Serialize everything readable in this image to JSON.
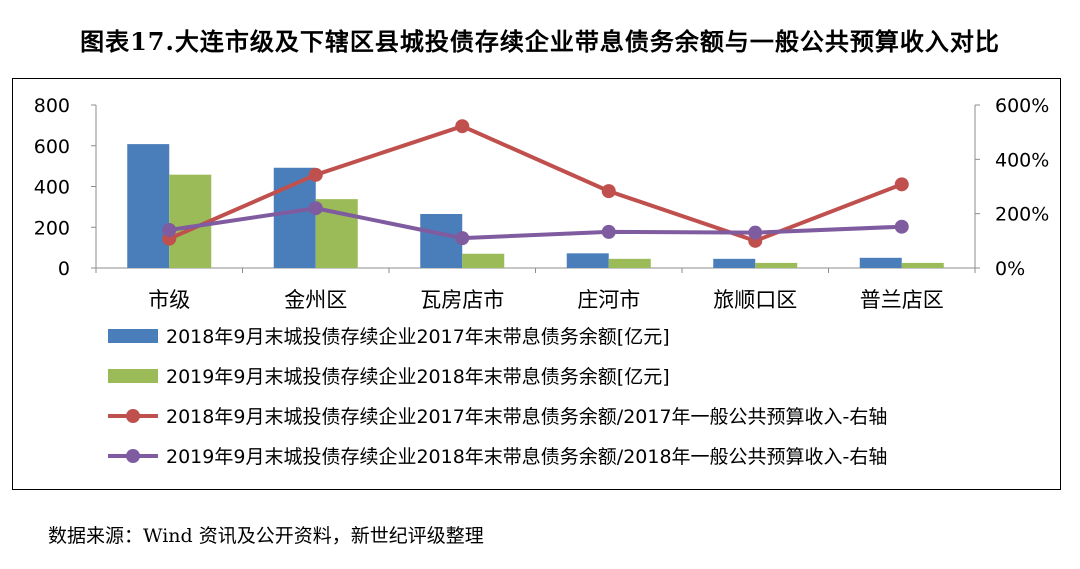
{
  "title": "图表17.大连市级及下辖区县城投债存续企业带息债务余额与一般公共预算收入对比",
  "source": "数据来源：Wind 资讯及公开资料，新世纪评级整理",
  "chart_data": {
    "type": "bar",
    "categories": [
      "市级",
      "金州区",
      "瓦房店市",
      "庄河市",
      "旅顺口区",
      "普兰店区"
    ],
    "y_left": {
      "ylim": [
        0,
        800
      ],
      "ticks": [
        0,
        200,
        400,
        600,
        800
      ]
    },
    "y_right": {
      "ylim": [
        0,
        600
      ],
      "ticks": [
        0,
        200,
        400,
        600
      ],
      "tick_labels": [
        "0%",
        "200%",
        "400%",
        "600%"
      ],
      "unit": "%"
    },
    "grid": false,
    "legend_position": "bottom",
    "series": [
      {
        "name": "2018年9月末城投债存续企业2017年末带息债务余额[亿元]",
        "type": "bar",
        "axis": "left",
        "color": "#4a7ebb",
        "values": [
          608,
          492,
          265,
          72,
          45,
          50
        ]
      },
      {
        "name": "2019年9月末城投债存续企业2018年末带息债务余额[亿元]",
        "type": "bar",
        "axis": "left",
        "color": "#9bbb59",
        "values": [
          458,
          338,
          70,
          45,
          25,
          25
        ]
      },
      {
        "name": "2018年9月末城投债存续企业2017年末带息债务余额/2017年一般公共预算收入-右轴",
        "type": "line",
        "axis": "right",
        "color": "#c0504d",
        "values": [
          108,
          343,
          522,
          283,
          100,
          308
        ]
      },
      {
        "name": "2019年9月末城投债存续企业2018年末带息债务余额/2018年一般公共预算收入-右轴",
        "type": "line",
        "axis": "right",
        "color": "#7f5ba0",
        "values": [
          140,
          220,
          110,
          133,
          130,
          152
        ]
      }
    ]
  }
}
